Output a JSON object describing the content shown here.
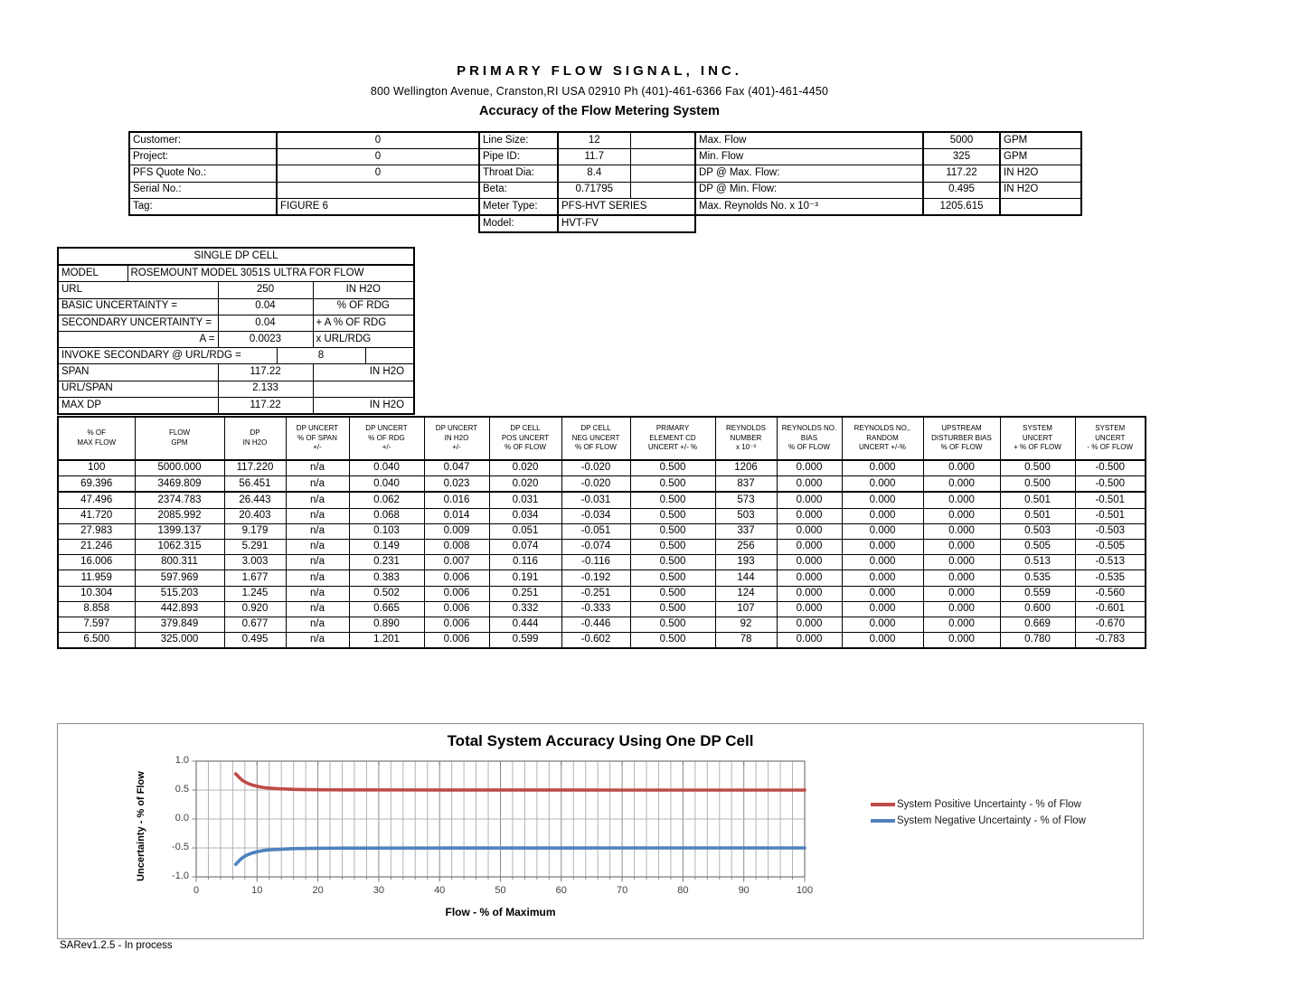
{
  "header": {
    "company": "PRIMARY FLOW SIGNAL, INC.",
    "address": "800 Wellington Avenue, Cranston,RI  USA  02910  Ph (401)-461-6366   Fax (401)-461-4450",
    "subtitle": "Accuracy of the Flow Metering System"
  },
  "info": {
    "left": [
      {
        "label": "Customer:",
        "value": "0"
      },
      {
        "label": "Project:",
        "value": "0"
      },
      {
        "label": "PFS Quote No.:",
        "value": "0"
      },
      {
        "label": "Serial No.:",
        "value": ""
      },
      {
        "label": "Tag:",
        "value": "FIGURE 6"
      }
    ],
    "middle": [
      {
        "label": "Line Size:",
        "value": "12"
      },
      {
        "label": "Pipe ID:",
        "value": "11.7"
      },
      {
        "label": "Throat Dia:",
        "value": "8.4"
      },
      {
        "label": "Beta:",
        "value": "0.71795"
      },
      {
        "label": "Meter Type:",
        "value": "PFS-HVT SERIES"
      },
      {
        "label": "Model:",
        "value": "HVT-FV"
      }
    ],
    "right": [
      {
        "label": "Max. Flow",
        "value": "5000",
        "unit": "GPM"
      },
      {
        "label": "Min. Flow",
        "value": "325",
        "unit": "GPM"
      },
      {
        "label": "DP @ Max. Flow:",
        "value": "117.22",
        "unit": "IN H2O"
      },
      {
        "label": "DP @ Min. Flow:",
        "value": "0.495",
        "unit": "IN H2O"
      },
      {
        "label": "Max. Reynolds No. x 10⁻³",
        "value": "1205.615",
        "unit": ""
      }
    ]
  },
  "dp_cell": {
    "title": "SINGLE DP CELL",
    "model_label": "MODEL",
    "model_value": "ROSEMOUNT MODEL 3051S ULTRA FOR FLOW",
    "rows": [
      {
        "label": "URL",
        "value": "250",
        "unit": "IN H2O"
      },
      {
        "label": "BASIC UNCERTAINTY =",
        "value": "0.04",
        "unit": "% OF RDG"
      },
      {
        "label": "SECONDARY UNCERTAINTY =",
        "value": "0.04",
        "unit": "+ A % OF RDG"
      },
      {
        "label": "A =",
        "value": "0.0023",
        "unit": "x  URL/RDG"
      },
      {
        "label": "INVOKE SECONDARY @ URL/RDG =",
        "value": "8",
        "unit": ""
      },
      {
        "label": "SPAN",
        "value": "117.22",
        "unit": "IN H2O"
      },
      {
        "label": "URL/SPAN",
        "value": "2.133",
        "unit": ""
      },
      {
        "label": "MAX DP",
        "value": "117.22",
        "unit": "IN H2O"
      }
    ]
  },
  "main_table": {
    "headers": [
      {
        "l1": "% OF",
        "l2": "MAX FLOW",
        "l3": ""
      },
      {
        "l1": "FLOW",
        "l2": "GPM",
        "l3": ""
      },
      {
        "l1": "DP",
        "l2": "IN H2O",
        "l3": ""
      },
      {
        "l1": "DP UNCERT",
        "l2": "% OF SPAN",
        "l3": "+/-"
      },
      {
        "l1": "DP UNCERT",
        "l2": "% OF RDG",
        "l3": "+/-"
      },
      {
        "l1": "DP UNCERT",
        "l2": "IN H2O",
        "l3": "+/-"
      },
      {
        "l1": "DP CELL",
        "l2": "POS UNCERT",
        "l3": "% OF FLOW"
      },
      {
        "l1": "DP CELL",
        "l2": "NEG UNCERT",
        "l3": "% OF FLOW"
      },
      {
        "l1": "PRIMARY",
        "l2": "ELEMENT CD",
        "l3": "UNCERT +/- %"
      },
      {
        "l1": "REYNOLDS",
        "l2": "NUMBER",
        "l3": "x 10⁻³"
      },
      {
        "l1": "REYNOLDS NO.",
        "l2": "BIAS",
        "l3": "% OF FLOW"
      },
      {
        "l1": "REYNOLDS NO,.",
        "l2": "RANDOM",
        "l3": "UNCERT +/-%"
      },
      {
        "l1": "UPSTREAM",
        "l2": "DISTURBER BIAS",
        "l3": "% OF FLOW"
      },
      {
        "l1": "SYSTEM",
        "l2": "UNCERT",
        "l3": "+ % OF FLOW"
      },
      {
        "l1": "SYSTEM",
        "l2": "UNCERT",
        "l3": "- % OF FLOW"
      }
    ],
    "rows": [
      [
        "100",
        "5000.000",
        "117.220",
        "n/a",
        "0.040",
        "0.047",
        "0.020",
        "-0.020",
        "0.500",
        "1206",
        "0.000",
        "0.000",
        "0.000",
        "0.500",
        "-0.500"
      ],
      [
        "69.396",
        "3469.809",
        "56.451",
        "n/a",
        "0.040",
        "0.023",
        "0.020",
        "-0.020",
        "0.500",
        "837",
        "0.000",
        "0.000",
        "0.000",
        "0.500",
        "-0.500"
      ],
      [
        "47.496",
        "2374.783",
        "26.443",
        "n/a",
        "0.062",
        "0.016",
        "0.031",
        "-0.031",
        "0.500",
        "573",
        "0.000",
        "0.000",
        "0.000",
        "0.501",
        "-0.501"
      ],
      [
        "41.720",
        "2085.992",
        "20.403",
        "n/a",
        "0.068",
        "0.014",
        "0.034",
        "-0.034",
        "0.500",
        "503",
        "0.000",
        "0.000",
        "0.000",
        "0.501",
        "-0.501"
      ],
      [
        "27.983",
        "1399.137",
        "9.179",
        "n/a",
        "0.103",
        "0.009",
        "0.051",
        "-0.051",
        "0.500",
        "337",
        "0.000",
        "0.000",
        "0.000",
        "0.503",
        "-0.503"
      ],
      [
        "21.246",
        "1062.315",
        "5.291",
        "n/a",
        "0.149",
        "0.008",
        "0.074",
        "-0.074",
        "0.500",
        "256",
        "0.000",
        "0.000",
        "0.000",
        "0.505",
        "-0.505"
      ],
      [
        "16.006",
        "800.311",
        "3.003",
        "n/a",
        "0.231",
        "0.007",
        "0.116",
        "-0.116",
        "0.500",
        "193",
        "0.000",
        "0.000",
        "0.000",
        "0.513",
        "-0.513"
      ],
      [
        "11.959",
        "597.969",
        "1.677",
        "n/a",
        "0.383",
        "0.006",
        "0.191",
        "-0.192",
        "0.500",
        "144",
        "0.000",
        "0.000",
        "0.000",
        "0.535",
        "-0.535"
      ],
      [
        "10.304",
        "515.203",
        "1.245",
        "n/a",
        "0.502",
        "0.006",
        "0.251",
        "-0.251",
        "0.500",
        "124",
        "0.000",
        "0.000",
        "0.000",
        "0.559",
        "-0.560"
      ],
      [
        "8.858",
        "442.893",
        "0.920",
        "n/a",
        "0.665",
        "0.006",
        "0.332",
        "-0.333",
        "0.500",
        "107",
        "0.000",
        "0.000",
        "0.000",
        "0.600",
        "-0.601"
      ],
      [
        "7.597",
        "379.849",
        "0.677",
        "n/a",
        "0.890",
        "0.006",
        "0.444",
        "-0.446",
        "0.500",
        "92",
        "0.000",
        "0.000",
        "0.000",
        "0.669",
        "-0.670"
      ],
      [
        "6.500",
        "325.000",
        "0.495",
        "n/a",
        "1.201",
        "0.006",
        "0.599",
        "-0.602",
        "0.500",
        "78",
        "0.000",
        "0.000",
        "0.000",
        "0.780",
        "-0.783"
      ]
    ]
  },
  "chart_data": {
    "type": "line",
    "title": "Total System Accuracy Using One DP Cell",
    "xlabel": "Flow - % of Maximum",
    "ylabel": "Uncertainty - % of Flow",
    "xlim": [
      0,
      100
    ],
    "ylim": [
      -1.0,
      1.0
    ],
    "x_ticks": [
      0,
      10,
      20,
      30,
      40,
      50,
      60,
      70,
      80,
      90,
      100
    ],
    "y_ticks": [
      "1.0",
      "0.5",
      "0.0",
      "-0.5",
      "-1.0"
    ],
    "grid": "vertical minor every 2, major every 10; horizontal every 0.5",
    "legend_position": "right",
    "x": [
      6.5,
      7.597,
      8.858,
      10.304,
      11.959,
      16.006,
      21.246,
      27.983,
      41.72,
      47.496,
      69.396,
      100
    ],
    "series": [
      {
        "name": "System Positive Uncertainty -  % of Flow",
        "color": "#be4b48",
        "values": [
          0.78,
          0.669,
          0.6,
          0.559,
          0.535,
          0.513,
          0.505,
          0.503,
          0.501,
          0.501,
          0.5,
          0.5
        ]
      },
      {
        "name": "System Negative Uncertainty -  % of Flow",
        "color": "#4f81bd",
        "values": [
          -0.783,
          -0.67,
          -0.601,
          -0.56,
          -0.535,
          -0.513,
          -0.505,
          -0.503,
          -0.501,
          -0.501,
          -0.5,
          -0.5
        ]
      }
    ]
  },
  "footer": "SARev1.2.5 - In process"
}
